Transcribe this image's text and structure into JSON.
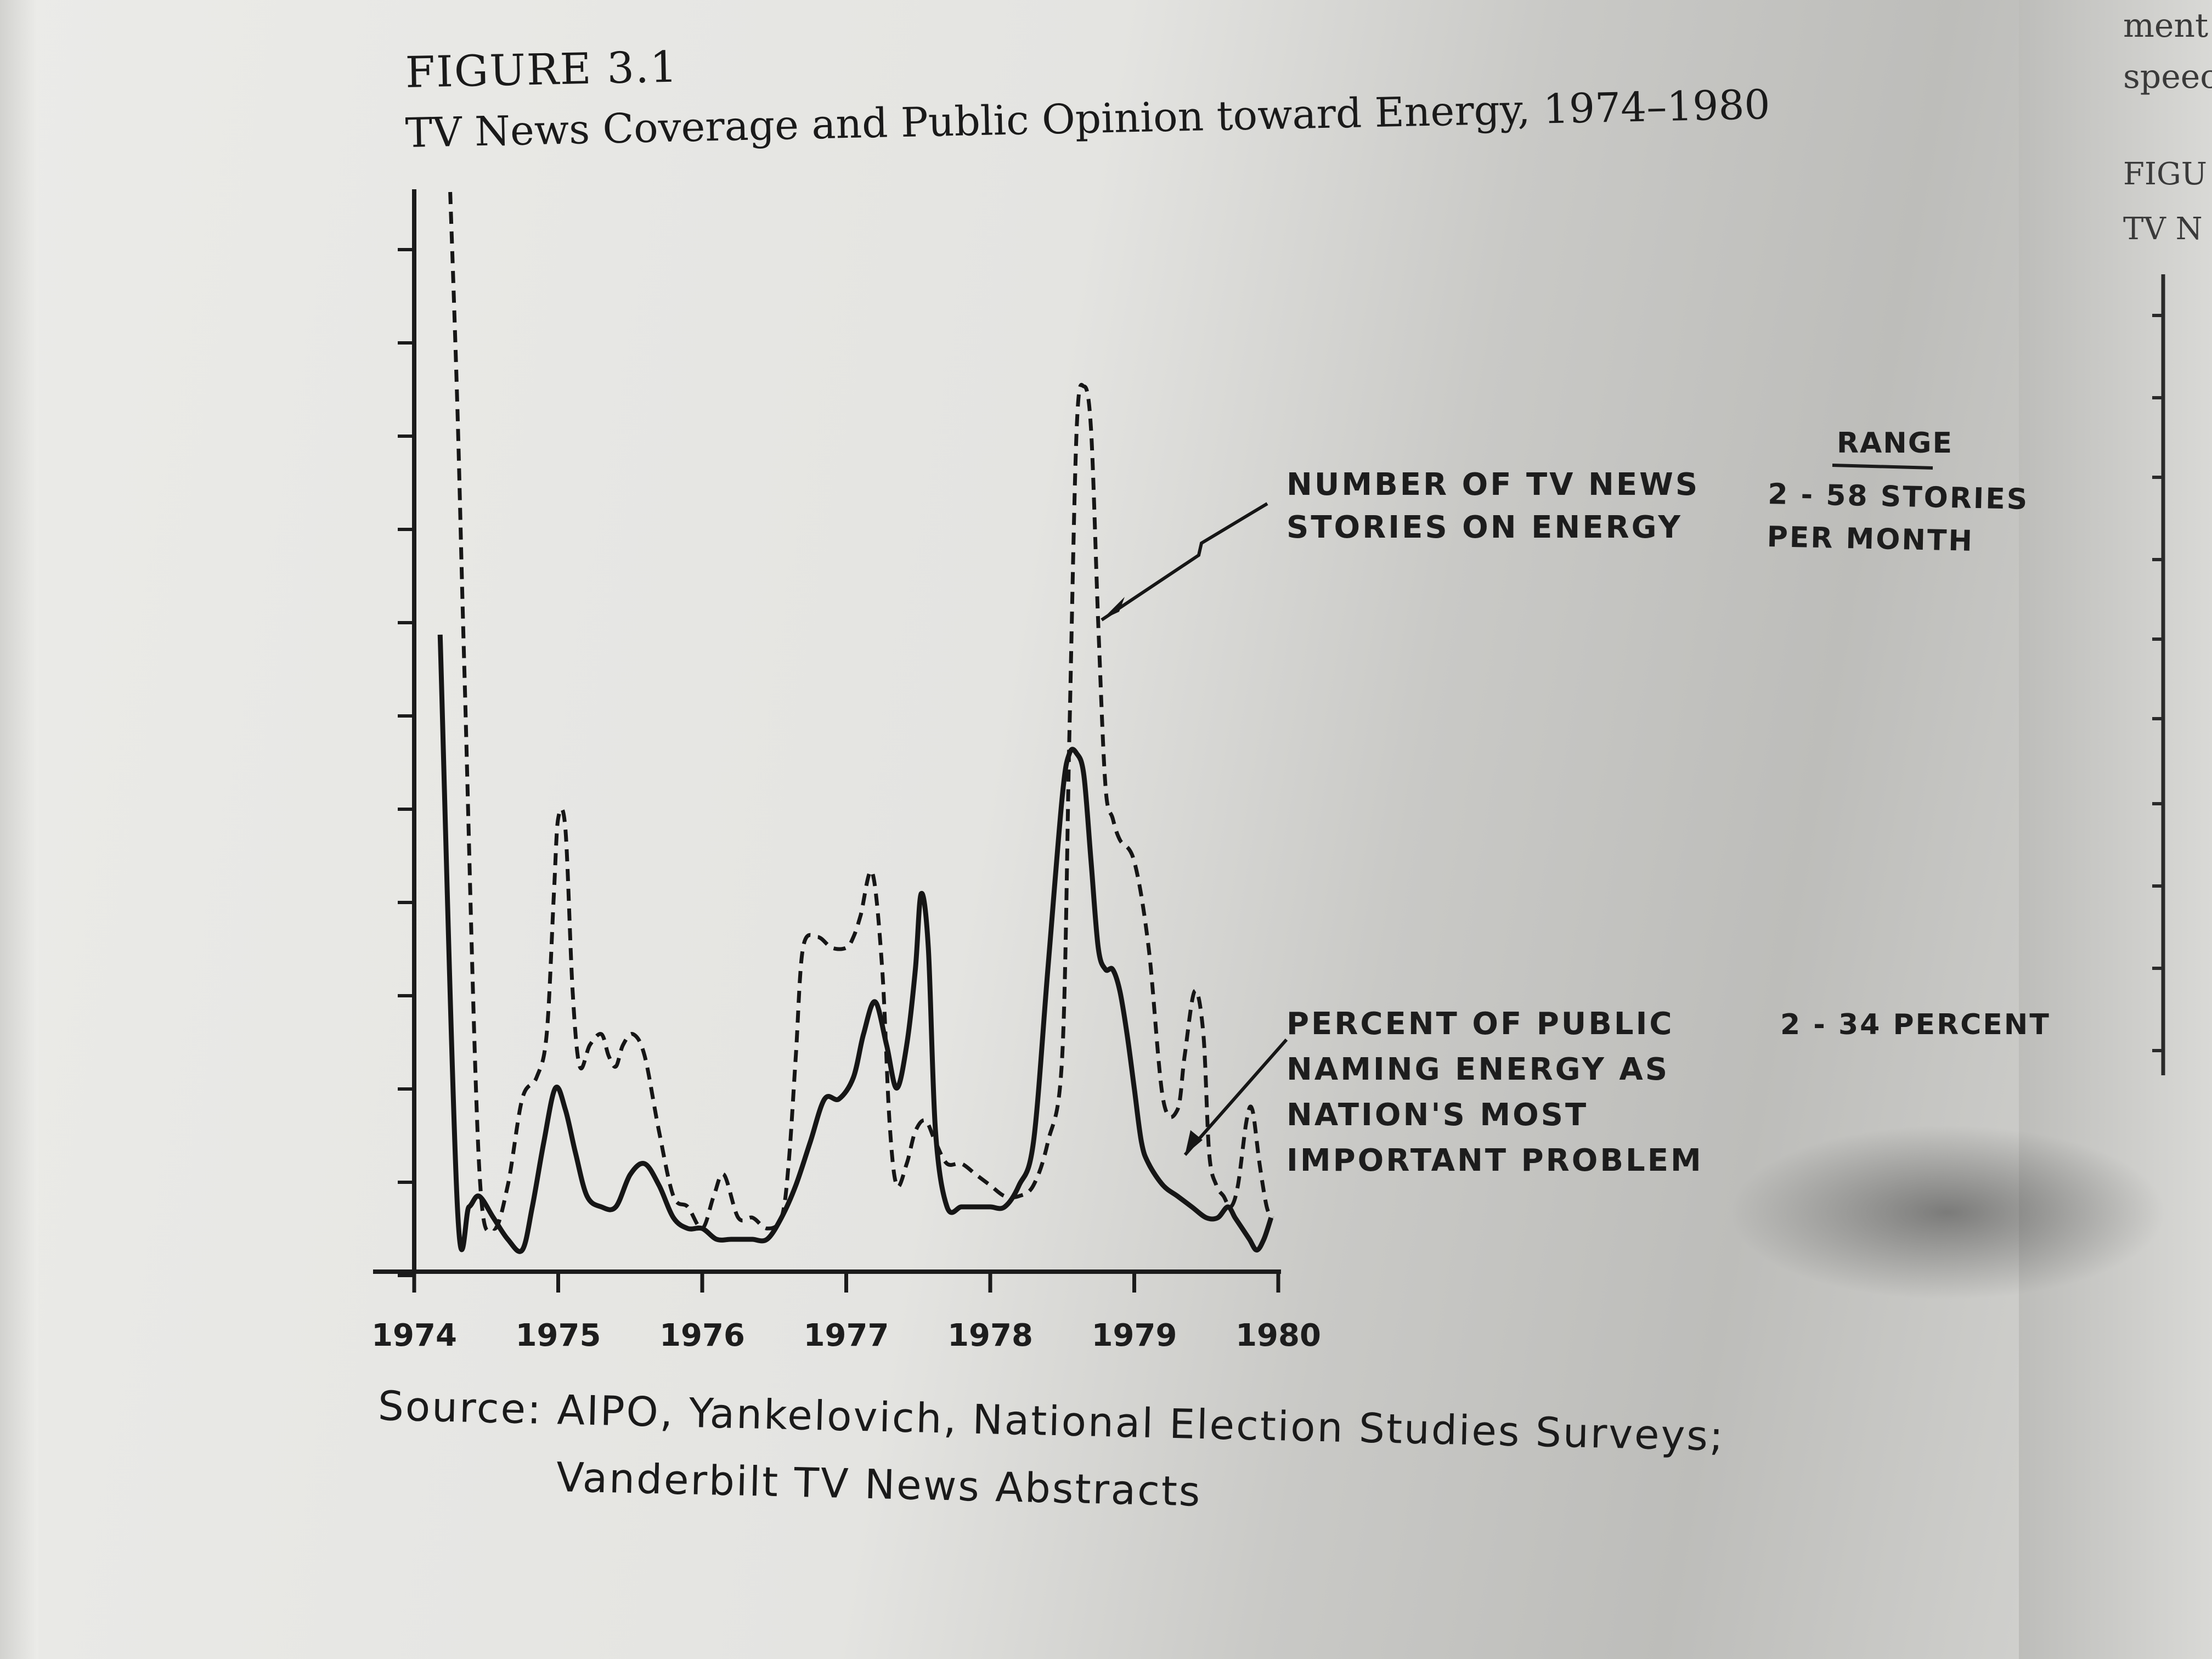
{
  "figure": {
    "label": "FIGURE 3.1",
    "title": "TV News Coverage and Public Opinion toward Energy, 1974–1980"
  },
  "source": {
    "line1": "Source: AIPO, Yankelovich, National Election Studies Surveys;",
    "line2": "Vanderbilt TV News Abstracts"
  },
  "next_page_fragments": [
    "ment",
    "speec",
    "FIGU",
    "TV N"
  ],
  "chart_data": {
    "type": "line",
    "title": "TV News Coverage and Public Opinion toward Energy, 1974–1980",
    "xlabel": "",
    "ylabel": "",
    "xlim": [
      1974,
      1980
    ],
    "ylim": [
      0,
      100
    ],
    "x_ticks": [
      "1974",
      "1975",
      "1976",
      "1977",
      "1978",
      "1979",
      "1980"
    ],
    "range_header": "RANGE",
    "series": [
      {
        "name": "NUMBER OF TV NEWS STORIES ON ENERGY",
        "label_lines": [
          "NUMBER OF TV NEWS",
          "STORIES ON ENERGY"
        ],
        "range_lines": [
          "2 - 58 STORIES",
          "PER MONTH"
        ],
        "style": "dashed",
        "x": [
          1974.25,
          1974.3,
          1974.35,
          1974.45,
          1974.55,
          1974.65,
          1974.75,
          1974.85,
          1974.92,
          1974.97,
          1975.0,
          1975.05,
          1975.1,
          1975.15,
          1975.22,
          1975.3,
          1975.35,
          1975.4,
          1975.45,
          1975.52,
          1975.6,
          1975.7,
          1975.8,
          1975.9,
          1976.0,
          1976.08,
          1976.15,
          1976.25,
          1976.35,
          1976.45,
          1976.55,
          1976.6,
          1976.65,
          1976.7,
          1976.8,
          1976.9,
          1977.0,
          1977.05,
          1977.1,
          1977.18,
          1977.25,
          1977.3,
          1977.35,
          1977.42,
          1977.48,
          1977.55,
          1977.62,
          1977.7,
          1977.8,
          1977.9,
          1978.0,
          1978.1,
          1978.2,
          1978.3,
          1978.4,
          1978.5,
          1978.55,
          1978.6,
          1978.65,
          1978.7,
          1978.75,
          1978.8,
          1978.85,
          1978.9,
          1979.0,
          1979.1,
          1979.2,
          1979.3,
          1979.35,
          1979.42,
          1979.48,
          1979.52,
          1979.57,
          1979.62,
          1979.67,
          1979.72,
          1979.78,
          1979.82,
          1979.87,
          1979.92,
          1979.96
        ],
        "values": [
          100,
          80,
          55,
          10,
          4,
          8,
          16,
          18,
          22,
          35,
          42,
          41,
          26,
          19,
          21,
          22,
          20,
          19,
          21,
          22,
          20,
          13,
          7,
          6,
          4,
          7,
          9,
          5,
          5,
          4,
          5,
          10,
          20,
          30,
          31,
          30,
          30,
          31,
          33,
          37,
          28,
          14,
          8,
          10,
          13,
          14,
          12,
          10,
          10,
          9,
          8,
          7,
          7,
          8,
          12,
          20,
          50,
          78,
          82,
          78,
          60,
          45,
          42,
          40,
          38,
          30,
          16,
          15,
          20,
          26,
          22,
          11,
          8,
          7,
          6,
          8,
          14,
          15,
          10,
          6,
          5
        ]
      },
      {
        "name": "PERCENT OF PUBLIC NAMING ENERGY AS NATION'S MOST IMPORTANT PROBLEM",
        "label_lines": [
          "PERCENT OF PUBLIC",
          "NAMING ENERGY AS",
          "NATION'S MOST",
          "IMPORTANT PROBLEM"
        ],
        "range_lines": [
          "2 - 34 PERCENT"
        ],
        "style": "solid",
        "x": [
          1974.18,
          1974.3,
          1974.38,
          1974.45,
          1974.55,
          1974.65,
          1974.75,
          1974.82,
          1974.9,
          1974.98,
          1975.05,
          1975.12,
          1975.2,
          1975.3,
          1975.4,
          1975.5,
          1975.6,
          1975.7,
          1975.8,
          1975.9,
          1976.0,
          1976.1,
          1976.2,
          1976.3,
          1976.35,
          1976.45,
          1976.55,
          1976.65,
          1976.75,
          1976.85,
          1976.95,
          1977.05,
          1977.12,
          1977.2,
          1977.28,
          1977.35,
          1977.42,
          1977.48,
          1977.52,
          1977.57,
          1977.62,
          1977.7,
          1977.8,
          1977.9,
          1978.0,
          1978.1,
          1978.2,
          1978.3,
          1978.4,
          1978.5,
          1978.55,
          1978.6,
          1978.65,
          1978.7,
          1978.75,
          1978.8,
          1978.85,
          1978.9,
          1978.95,
          1979.0,
          1979.05,
          1979.1,
          1979.2,
          1979.3,
          1979.4,
          1979.5,
          1979.58,
          1979.65,
          1979.7,
          1979.75,
          1979.8,
          1979.85,
          1979.9,
          1979.95
        ],
        "values": [
          59,
          6,
          6,
          7,
          5,
          3,
          2,
          6,
          12,
          17,
          15,
          11,
          7,
          6,
          6,
          9,
          10,
          8,
          5,
          4,
          4,
          3,
          3,
          3,
          3,
          3,
          5,
          8,
          12,
          16,
          16,
          18,
          22,
          25,
          21,
          17,
          21,
          28,
          35,
          30,
          13,
          6,
          6,
          6,
          6,
          6,
          8,
          12,
          28,
          44,
          48,
          48,
          46,
          38,
          30,
          28,
          28,
          26,
          22,
          17,
          12,
          10,
          8,
          7,
          6,
          5,
          5,
          6,
          5,
          4,
          3,
          2,
          3,
          5
        ]
      }
    ]
  }
}
